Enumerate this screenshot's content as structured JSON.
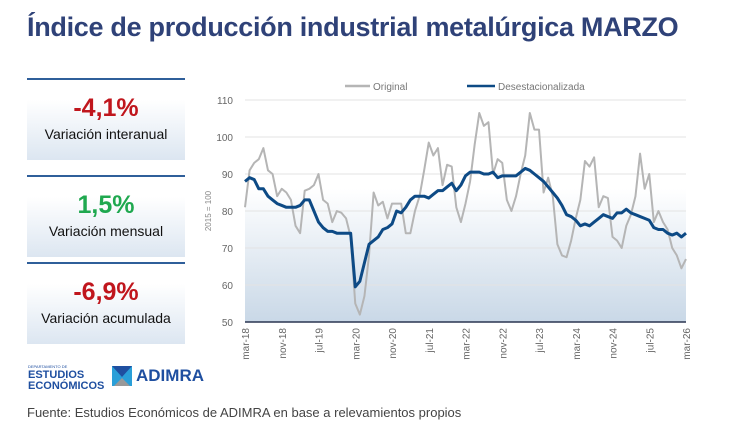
{
  "title": "Índice de producción industrial metalúrgica MARZO",
  "cards": [
    {
      "value": "-4,1%",
      "label": "Variación interanual",
      "color": "#c0161d"
    },
    {
      "value": "1,5%",
      "label": "Variación mensual",
      "color": "#1fa84f"
    },
    {
      "value": "-6,9%",
      "label": "Variación acumulada",
      "color": "#c0161d"
    }
  ],
  "logos": {
    "dept_small": "DEPARTAMENTO DE",
    "dept": "ESTUDIOS ECONÓMICOS",
    "adimra": "ADIMRA"
  },
  "source": "Fuente: Estudios Económicos de ADIMRA en base a relevamientos propios",
  "chart_data": {
    "type": "line",
    "ylabel": "2015 = 100",
    "ylim": [
      50,
      110
    ],
    "yticks": [
      50,
      60,
      70,
      80,
      90,
      100,
      110
    ],
    "x_start": "mar-18",
    "x_end": "mar-26",
    "xtick_labels": [
      "mar-18",
      "nov-18",
      "jul-19",
      "mar-20",
      "nov-20",
      "jul-21",
      "mar-22",
      "nov-22",
      "jul-23",
      "mar-24",
      "nov-24",
      "jul-25",
      "mar-26"
    ],
    "legend_position": "top",
    "grid": true,
    "series": [
      {
        "name": "Original",
        "color": "#b5b5b5",
        "values": [
          81,
          91,
          93,
          94,
          97,
          91,
          90,
          84,
          86,
          85,
          83,
          76,
          74,
          85.5,
          86,
          87,
          90,
          83,
          82,
          77,
          80,
          79.5,
          78,
          73,
          55,
          52,
          57,
          68,
          85,
          81.5,
          82.5,
          78,
          82,
          82,
          82,
          74,
          74,
          80,
          84,
          91,
          98.5,
          95,
          97,
          87,
          92.5,
          92,
          81,
          77,
          82,
          88,
          98,
          106.5,
          103,
          104,
          90,
          94,
          93,
          83,
          80,
          84,
          90,
          95,
          106.5,
          102,
          102,
          85,
          89,
          84,
          71,
          68,
          67.5,
          72,
          78,
          83,
          93.5,
          92,
          94.5,
          81,
          84,
          83.5,
          73,
          72,
          70,
          76,
          79,
          84,
          95.5,
          86,
          90,
          77,
          80,
          77,
          75,
          70,
          68,
          64.5,
          67
        ]
      },
      {
        "name": "Desestacionalizada",
        "color": "#0d4a85",
        "values": [
          88,
          89,
          88.5,
          86,
          86,
          84,
          83,
          82,
          81.5,
          81,
          81,
          81,
          81.5,
          83,
          83,
          80,
          77,
          75.5,
          74.5,
          74.5,
          74,
          74,
          74,
          74,
          59.5,
          61,
          66,
          71,
          72,
          73,
          75,
          75.5,
          76.5,
          80,
          79.5,
          81,
          83,
          84,
          84,
          84,
          83.5,
          84.5,
          85.5,
          85.5,
          86.5,
          87.5,
          85.5,
          87,
          89.5,
          90.5,
          90.5,
          90.5,
          90,
          90,
          90.5,
          89,
          89.5,
          89.5,
          89.5,
          89.5,
          90.5,
          91.5,
          91,
          90,
          89,
          88,
          86.5,
          85,
          83.5,
          81.5,
          79,
          78.5,
          77.5,
          76,
          76.5,
          76,
          77,
          78,
          79,
          78.5,
          78,
          79.5,
          79.5,
          80.5,
          79.5,
          79,
          78.5,
          78,
          77.5,
          75.5,
          75,
          75,
          74,
          73.5,
          74,
          73,
          74
        ]
      }
    ]
  }
}
